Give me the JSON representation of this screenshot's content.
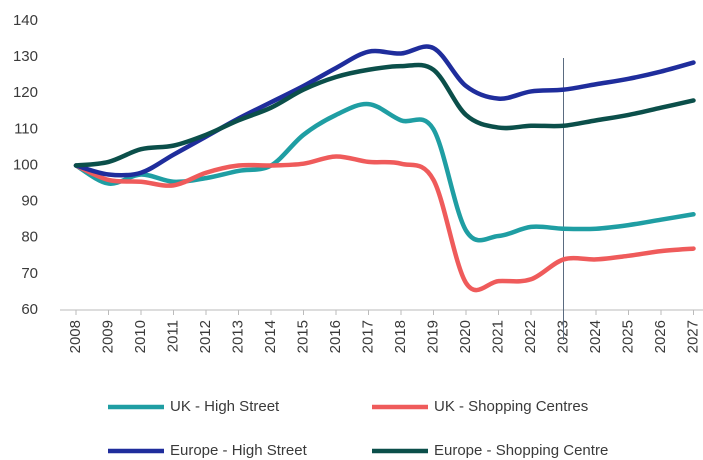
{
  "chart_data": {
    "type": "line",
    "categories": [
      "2008",
      "2009",
      "2010",
      "2011",
      "2012",
      "2013",
      "2014",
      "2015",
      "2016",
      "2017",
      "2018",
      "2019",
      "2020",
      "2021",
      "2022",
      "2023",
      "2024",
      "2025",
      "2026",
      "2027"
    ],
    "series": [
      {
        "name": "UK - High Street",
        "color": "#1f9ea3",
        "values": [
          100,
          95,
          97.5,
          95.5,
          96.5,
          98.5,
          100,
          108.5,
          114,
          117,
          112.5,
          110,
          82,
          80.5,
          83,
          82.5,
          82.5,
          83.5,
          85,
          86.5
        ]
      },
      {
        "name": "UK - Shopping Centres",
        "color": "#ef5b5b",
        "values": [
          100,
          96,
          95.5,
          94.5,
          98,
          100,
          100,
          100.5,
          102.5,
          101,
          100.5,
          96,
          67.5,
          68,
          68.5,
          74,
          74,
          75,
          76.3,
          77
        ]
      },
      {
        "name": "Europe - High Street",
        "color": "#1f2d9c",
        "values": [
          100,
          97.5,
          98,
          103,
          108,
          113,
          117.5,
          122,
          127,
          131.5,
          131,
          132.5,
          122,
          118.5,
          120.5,
          121,
          122.5,
          124,
          126,
          128.5
        ]
      },
      {
        "name": "Europe - Shopping Centre",
        "color": "#0b4f4a",
        "values": [
          100,
          101,
          104.5,
          105.5,
          108.5,
          112.5,
          116,
          121,
          124.5,
          126.5,
          127.5,
          126.5,
          114,
          110.5,
          111,
          111,
          112.5,
          114,
          116,
          118
        ]
      }
    ],
    "ylim": [
      60,
      140
    ],
    "yticks": [
      60,
      70,
      80,
      90,
      100,
      110,
      120,
      130,
      140
    ],
    "vline": "2023",
    "grid": false
  }
}
